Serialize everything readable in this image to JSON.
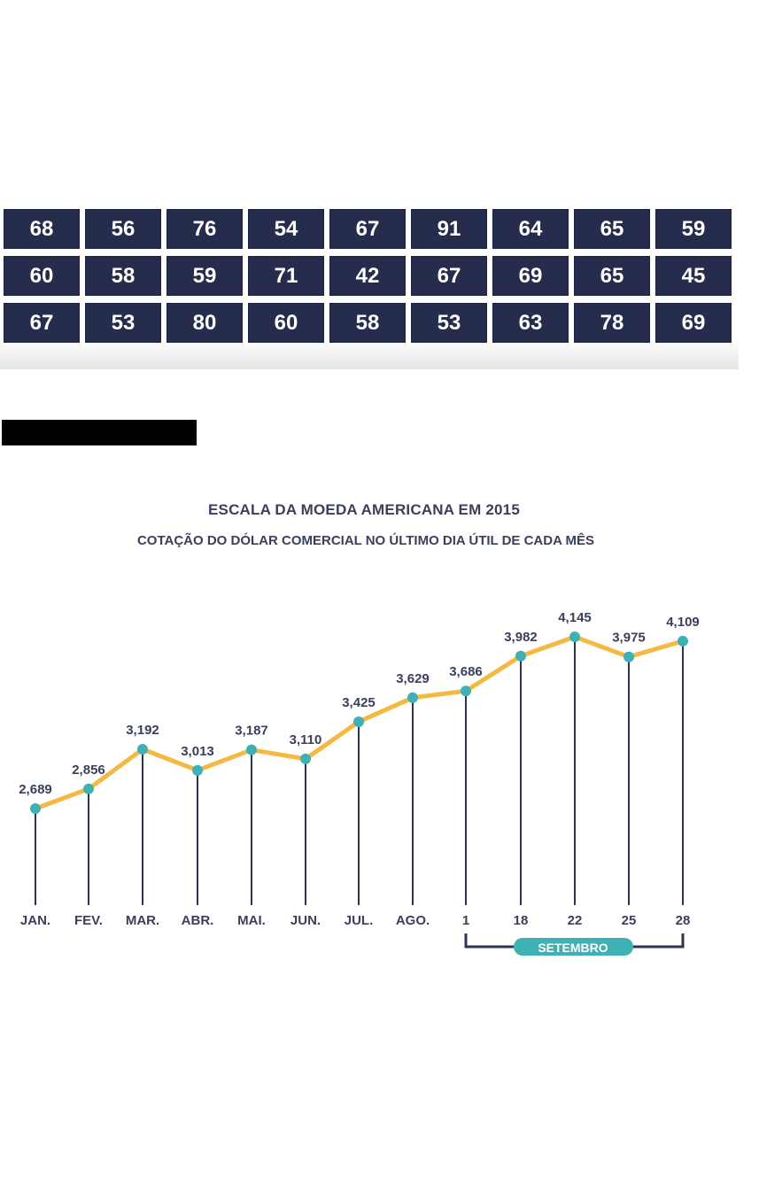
{
  "number_grid": {
    "rows": [
      [
        "68",
        "56",
        "76",
        "54",
        "67",
        "91",
        "64",
        "65",
        "59"
      ],
      [
        "60",
        "58",
        "59",
        "71",
        "42",
        "67",
        "69",
        "65",
        "45"
      ],
      [
        "67",
        "53",
        "80",
        "60",
        "58",
        "53",
        "63",
        "78",
        "69"
      ]
    ]
  },
  "chart_data": {
    "type": "line",
    "title": "ESCALA DA MOEDA AMERICANA EM 2015",
    "subtitle": "COTAÇÃO DO DÓLAR COMERCIAL NO ÚLTIMO DIA ÚTIL DE CADA MÊS",
    "categories": [
      "JAN.",
      "FEV.",
      "MAR.",
      "ABR.",
      "MAI.",
      "JUN.",
      "JUL.",
      "AGO.",
      "1",
      "18",
      "22",
      "25",
      "28"
    ],
    "values": [
      2.689,
      2.856,
      3.192,
      3.013,
      3.187,
      3.11,
      3.425,
      3.629,
      3.686,
      3.982,
      4.145,
      3.975,
      4.109
    ],
    "value_labels": [
      "2,689",
      "2,856",
      "3,192",
      "3,013",
      "3,187",
      "3,110",
      "3,425",
      "3,629",
      "3,686",
      "3,982",
      "4,145",
      "3,975",
      "4,109"
    ],
    "group_label": "SETEMBRO",
    "group_categories": [
      "1",
      "18",
      "22",
      "25",
      "28"
    ],
    "colors": {
      "line": "#f5b942",
      "marker": "#3fb0b4",
      "stem": "#2e3452",
      "text": "#3a3f5c",
      "badge": "#3fb0b4",
      "badge_text": "#ffffff"
    }
  }
}
